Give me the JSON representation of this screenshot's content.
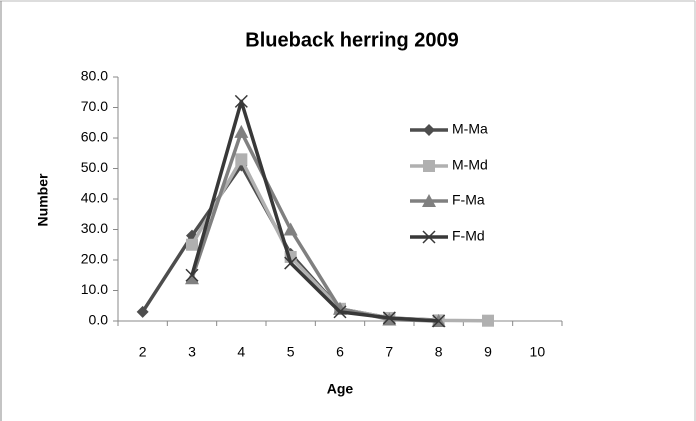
{
  "chart_data": {
    "type": "line",
    "title": "Blueback herring 2009",
    "x_label": "Age",
    "y_label": "Number",
    "categories": [
      "2",
      "3",
      "4",
      "5",
      "6",
      "7",
      "8",
      "9",
      "10"
    ],
    "ylim": [
      0,
      80
    ],
    "yticks": [
      {
        "value": 0,
        "label": "0.0"
      },
      {
        "value": 10,
        "label": "10.0"
      },
      {
        "value": 20,
        "label": "20.0"
      },
      {
        "value": 30,
        "label": "30.0"
      },
      {
        "value": 40,
        "label": "40.0"
      },
      {
        "value": 50,
        "label": "50.0"
      },
      {
        "value": 60,
        "label": "60.0"
      },
      {
        "value": 70,
        "label": "70.0"
      },
      {
        "value": 80,
        "label": "80.0"
      }
    ],
    "legend": "right",
    "series": [
      {
        "name": "M-Ma",
        "color": "#4d4d4d",
        "marker": "diamond",
        "values": [
          3,
          28,
          51,
          22,
          4,
          1,
          0.3,
          null,
          null
        ]
      },
      {
        "name": "M-Md",
        "color": "#b0b0b0",
        "marker": "square",
        "values": [
          null,
          25,
          53,
          21,
          4,
          1,
          0.2,
          0.1,
          null
        ]
      },
      {
        "name": "F-Ma",
        "color": "#808080",
        "marker": "triangle",
        "values": [
          null,
          14,
          62,
          30,
          4,
          0.5,
          0,
          null,
          null
        ]
      },
      {
        "name": "F-Md",
        "color": "#383838",
        "marker": "x",
        "values": [
          null,
          15,
          72,
          19,
          3,
          1,
          0,
          null,
          null
        ]
      }
    ]
  }
}
